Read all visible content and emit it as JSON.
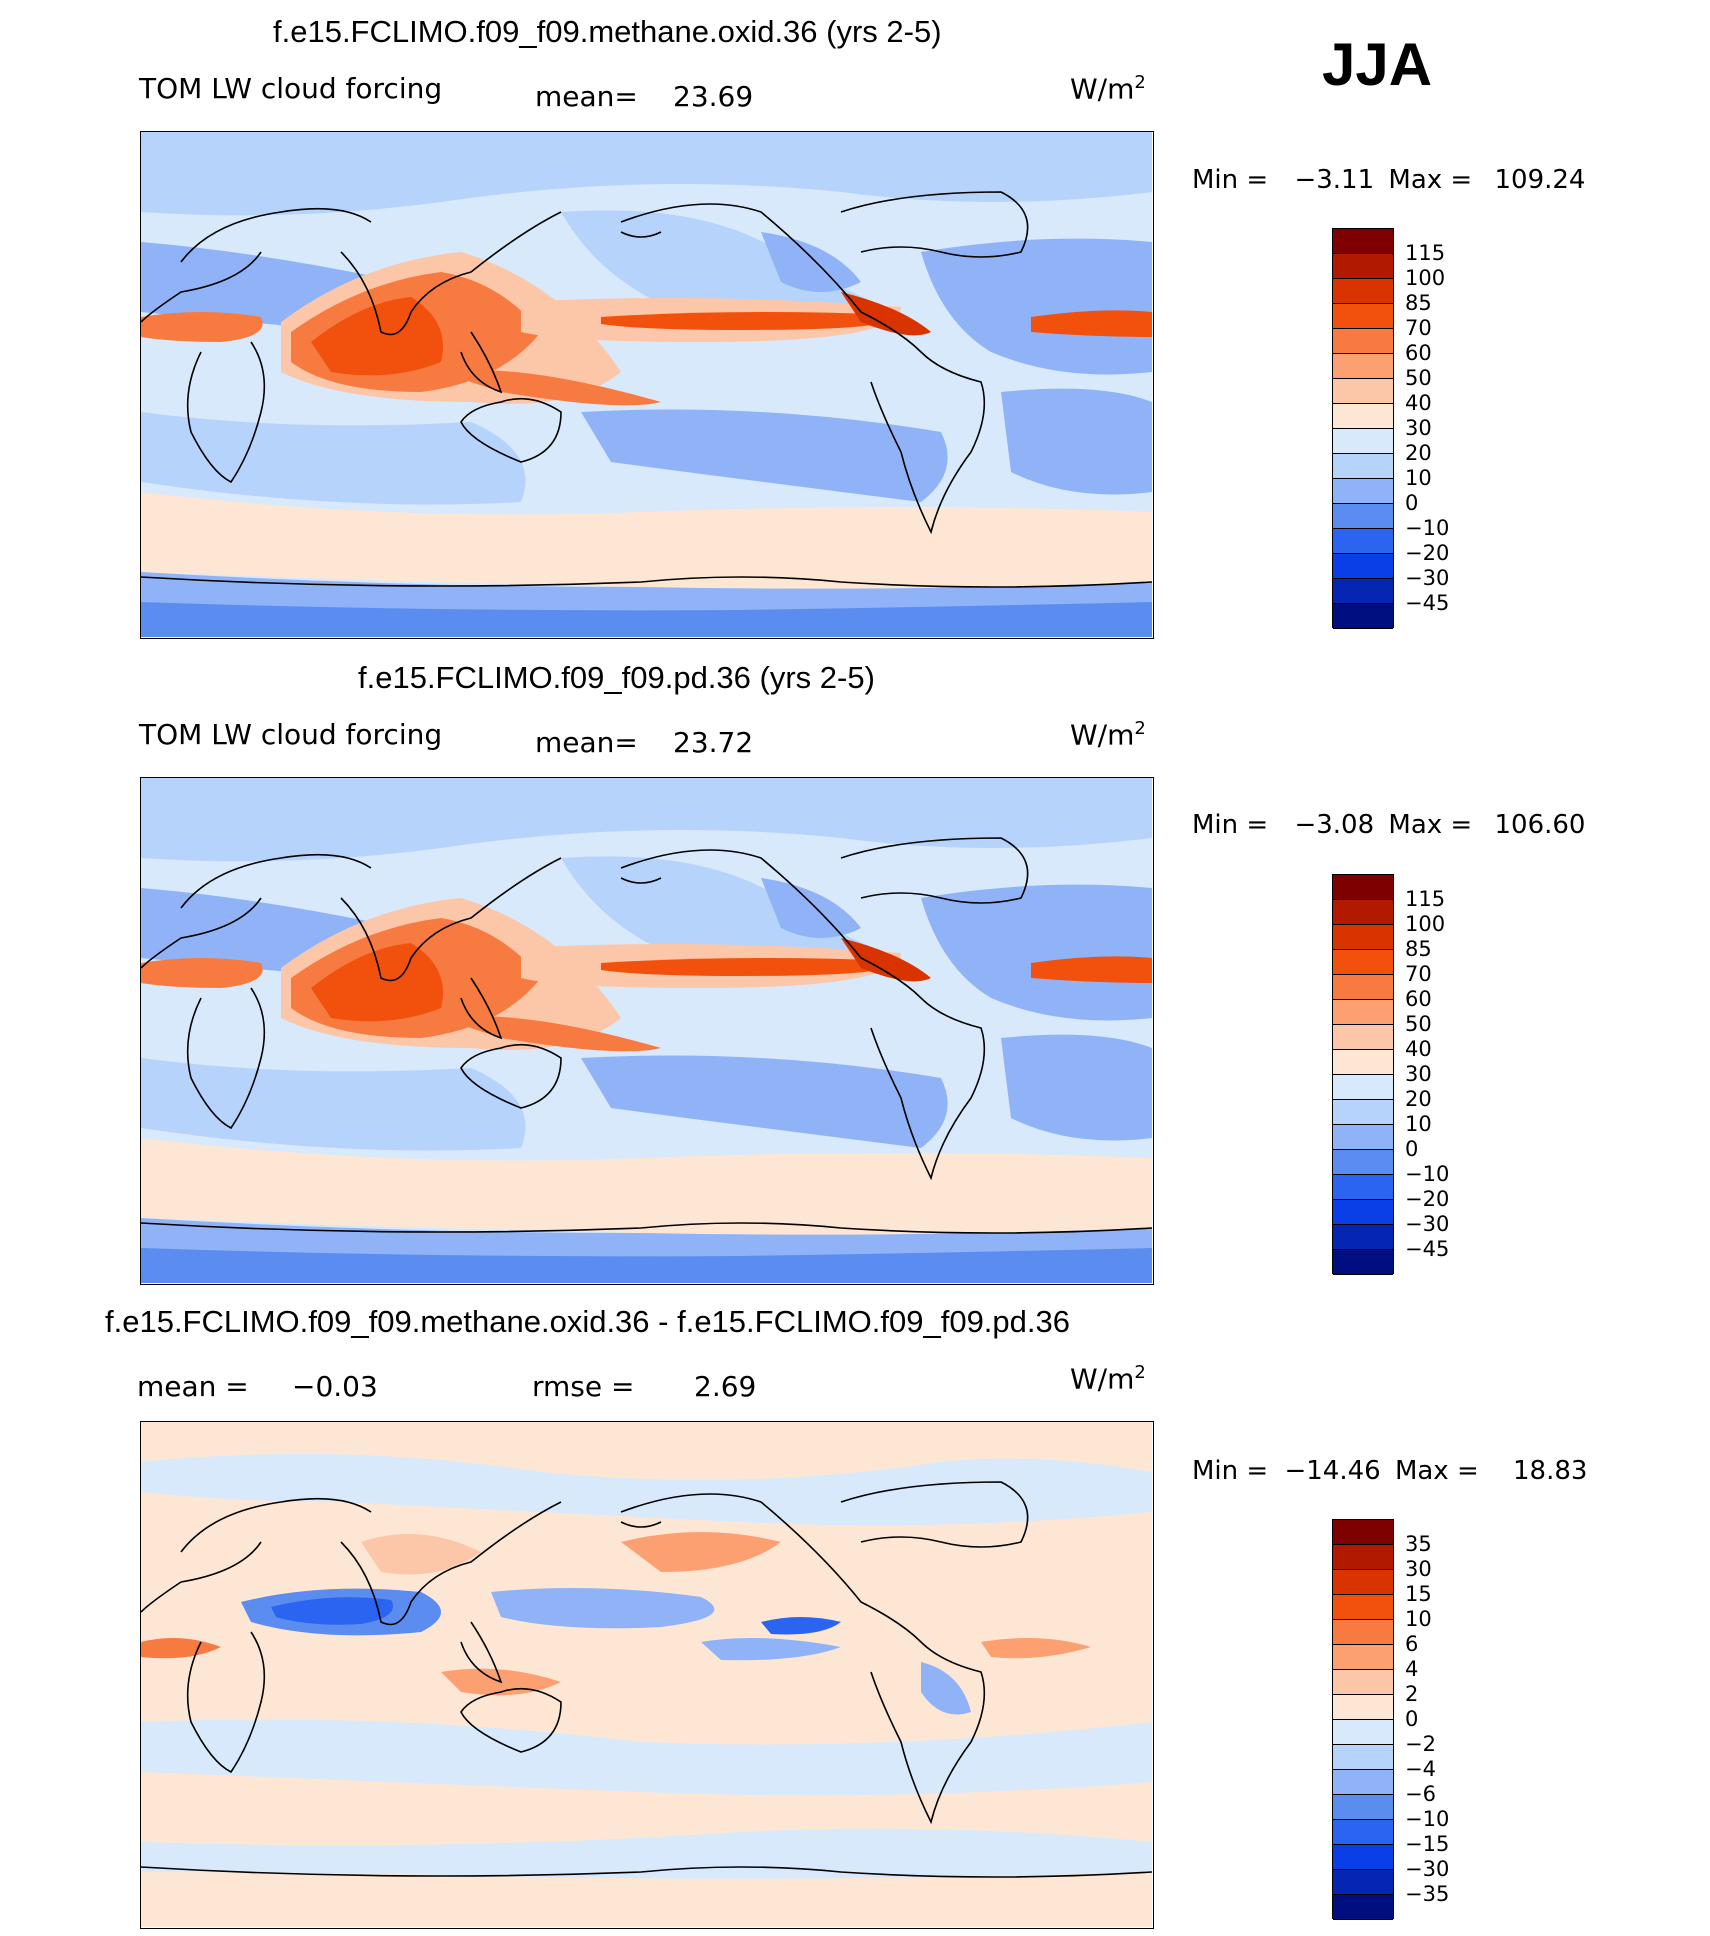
{
  "season": "JJA",
  "panels": [
    {
      "title": "f.e15.FCLIMO.f09_f09.methane.oxid.36 (yrs 2-5)",
      "left_label": "TOM LW cloud forcing",
      "stat_label": "mean=",
      "stat_value": "23.69",
      "units": "W/m",
      "units_sup": "2",
      "min_label": "Min =",
      "min_value": "−3.11",
      "max_label": "Max =",
      "max_value": "109.24",
      "colorbar": {
        "labels": [
          "115",
          "100",
          "85",
          "70",
          "60",
          "50",
          "40",
          "30",
          "20",
          "10",
          "0",
          "−10",
          "−20",
          "−30",
          "−45"
        ],
        "colors": [
          "#7f0000",
          "#b21a00",
          "#d93300",
          "#f2500d",
          "#f77a40",
          "#fca072",
          "#fcc7a8",
          "#fde7d4",
          "#d7e9fb",
          "#b6d3fb",
          "#8fb3f6",
          "#5b8df0",
          "#2a64f0",
          "#0a3ee6",
          "#0526b3",
          "#000f80"
        ]
      },
      "background_color": "#d7e9fb"
    },
    {
      "title": "f.e15.FCLIMO.f09_f09.pd.36 (yrs 2-5)",
      "left_label": "TOM LW cloud forcing",
      "stat_label": "mean=",
      "stat_value": "23.72",
      "units": "W/m",
      "units_sup": "2",
      "min_label": "Min =",
      "min_value": "−3.08",
      "max_label": "Max =",
      "max_value": "106.60",
      "colorbar": {
        "labels": [
          "115",
          "100",
          "85",
          "70",
          "60",
          "50",
          "40",
          "30",
          "20",
          "10",
          "0",
          "−10",
          "−20",
          "−30",
          "−45"
        ],
        "colors": [
          "#7f0000",
          "#b21a00",
          "#d93300",
          "#f2500d",
          "#f77a40",
          "#fca072",
          "#fcc7a8",
          "#fde7d4",
          "#d7e9fb",
          "#b6d3fb",
          "#8fb3f6",
          "#5b8df0",
          "#2a64f0",
          "#0a3ee6",
          "#0526b3",
          "#000f80"
        ]
      },
      "background_color": "#d7e9fb"
    },
    {
      "title": "f.e15.FCLIMO.f09_f09.methane.oxid.36 - f.e15.FCLIMO.f09_f09.pd.36",
      "left_label": "mean =",
      "left_value": "−0.03",
      "stat_label": "rmse =",
      "stat_value": "2.69",
      "units": "W/m",
      "units_sup": "2",
      "min_label": "Min =",
      "min_value": "−14.46",
      "max_label": "Max =",
      "max_value": "18.83",
      "colorbar": {
        "labels": [
          "35",
          "30",
          "15",
          "10",
          "6",
          "4",
          "2",
          "0",
          "−2",
          "−4",
          "−6",
          "−10",
          "−15",
          "−30",
          "−35"
        ],
        "colors": [
          "#7f0000",
          "#b21a00",
          "#d93300",
          "#f2500d",
          "#f77a40",
          "#fca072",
          "#fcc7a8",
          "#fde7d4",
          "#d7e9fb",
          "#b6d3fb",
          "#8fb3f6",
          "#5b8df0",
          "#2a64f0",
          "#0a3ee6",
          "#0526b3",
          "#000f80"
        ]
      },
      "background_color": "#fde7d4"
    }
  ]
}
